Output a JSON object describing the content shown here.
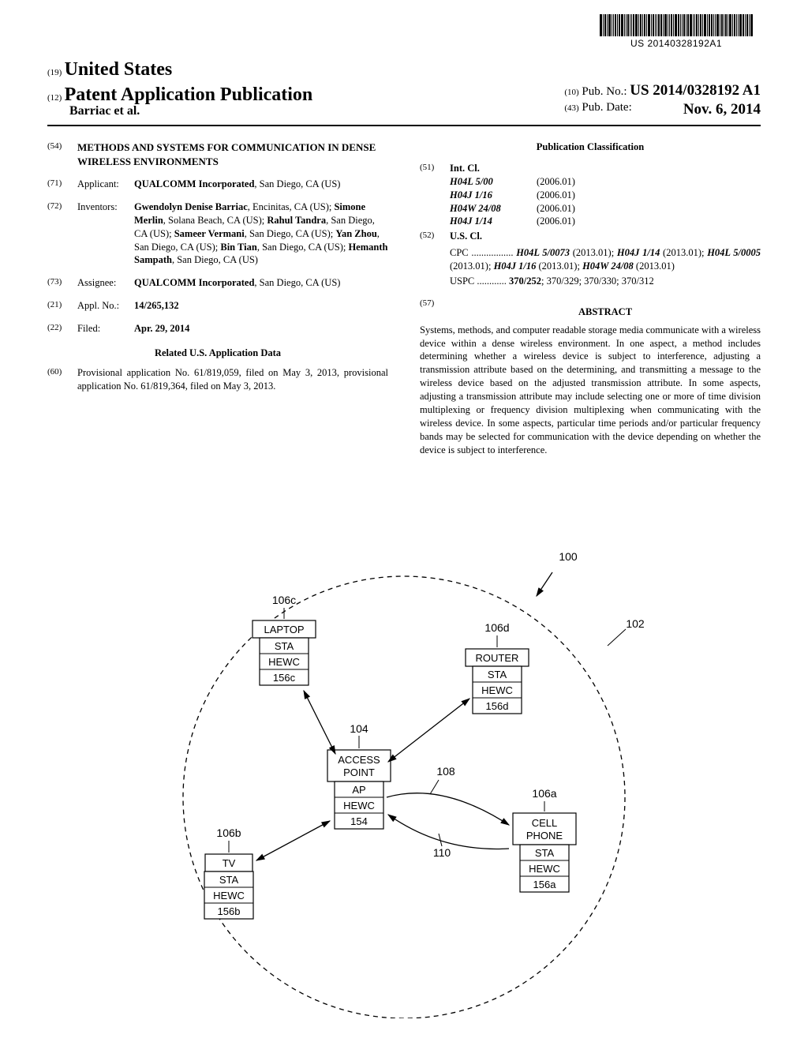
{
  "barcode_label": "US 20140328192A1",
  "header": {
    "line1_num": "(19)",
    "line1_text": "United States",
    "line2_num": "(12)",
    "line2_text": "Patent Application Publication",
    "authors": "Barriac et al.",
    "pubno_num": "(10)",
    "pubno_label": "Pub. No.:",
    "pubno": "US 2014/0328192 A1",
    "pubdate_num": "(43)",
    "pubdate_label": "Pub. Date:",
    "pubdate": "Nov. 6, 2014"
  },
  "left": {
    "f54_tag": "(54)",
    "f54_title": "METHODS AND SYSTEMS FOR COMMUNICATION IN DENSE WIRELESS ENVIRONMENTS",
    "f71_tag": "(71)",
    "f71_label": "Applicant:",
    "f71_text_bold": "QUALCOMM Incorporated",
    "f71_text_rest": ", San Diego, CA (US)",
    "f72_tag": "(72)",
    "f72_label": "Inventors:",
    "f72_text": "Gwendolyn Denise Barriac, Encinitas, CA (US); Simone Merlin, Solana Beach, CA (US); Rahul Tandra, San Diego, CA (US); Sameer Vermani, San Diego, CA (US); Yan Zhou, San Diego, CA (US); Bin Tian, San Diego, CA (US); Hemanth Sampath, San Diego, CA (US)",
    "f73_tag": "(73)",
    "f73_label": "Assignee:",
    "f73_text_bold": "QUALCOMM Incorporated",
    "f73_text_rest": ", San Diego, CA (US)",
    "f21_tag": "(21)",
    "f21_label": "Appl. No.:",
    "f21_text": "14/265,132",
    "f22_tag": "(22)",
    "f22_label": "Filed:",
    "f22_text": "Apr. 29, 2014",
    "related_head": "Related U.S. Application Data",
    "f60_tag": "(60)",
    "f60_text": "Provisional application No. 61/819,059, filed on May 3, 2013, provisional application No. 61/819,364, filed on May 3, 2013."
  },
  "right": {
    "pubclass_head": "Publication Classification",
    "f51_tag": "(51)",
    "f51_label": "Int. Cl.",
    "intcl": [
      {
        "code": "H04L 5/00",
        "year": "(2006.01)"
      },
      {
        "code": "H04J 1/16",
        "year": "(2006.01)"
      },
      {
        "code": "H04W 24/08",
        "year": "(2006.01)"
      },
      {
        "code": "H04J 1/14",
        "year": "(2006.01)"
      }
    ],
    "f52_tag": "(52)",
    "f52_label": "U.S. Cl.",
    "cpc_lead": "CPC",
    "cpc_dots": " ................. ",
    "cpc_text": "H04L 5/0073 (2013.01); H04J 1/14 (2013.01); H04L 5/0005 (2013.01); H04J 1/16 (2013.01); H04W 24/08 (2013.01)",
    "uspc_lead": "USPC",
    "uspc_dots": " ............ ",
    "uspc_text": "370/252; 370/329; 370/330; 370/312",
    "f57_tag": "(57)",
    "abstract_head": "ABSTRACT",
    "abstract": "Systems, methods, and computer readable storage media communicate with a wireless device within a dense wireless environment. In one aspect, a method includes determining whether a wireless device is subject to interference, adjusting a transmission attribute based on the determining, and transmitting a message to the wireless device based on the adjusted transmission attribute. In some aspects, adjusting a transmission attribute may include selecting one or more of time division multiplexing or frequency division multiplexing when communicating with the wireless device. In some aspects, particular time periods and/or particular frequency bands may be selected for communication with the device depending on whether the device is subject to interference."
  },
  "figure": {
    "ref100": "100",
    "ref102": "102",
    "ref104": "104",
    "ref108": "108",
    "ref110": "110",
    "nodes": {
      "ap": {
        "ref": "104",
        "title": "ACCESS",
        "title2": "POINT",
        "l1": "AP",
        "l2": "HEWC",
        "l3": "154"
      },
      "laptop": {
        "ref": "106c",
        "title": "LAPTOP",
        "l1": "STA",
        "l2": "HEWC",
        "l3": "156c"
      },
      "router": {
        "ref": "106d",
        "title": "ROUTER",
        "l1": "STA",
        "l2": "HEWC",
        "l3": "156d"
      },
      "tv": {
        "ref": "106b",
        "title": "TV",
        "l1": "STA",
        "l2": "HEWC",
        "l3": "156b"
      },
      "cell": {
        "ref": "106a",
        "title": "CELL",
        "title2": "PHONE",
        "l1": "STA",
        "l2": "HEWC",
        "l3": "156a"
      }
    }
  }
}
